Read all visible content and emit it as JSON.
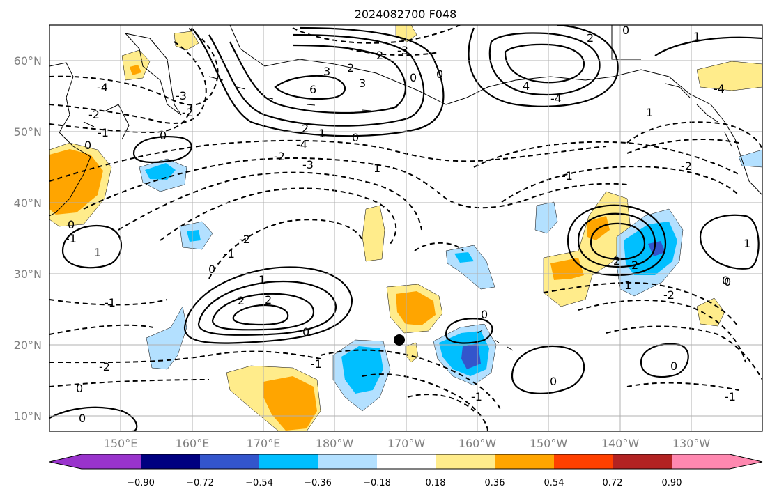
{
  "title": "2024082700 F048",
  "map": {
    "lat_labels": [
      "60°N",
      "50°N",
      "40°N",
      "30°N",
      "20°N",
      "10°N"
    ],
    "lon_labels": [
      "150°E",
      "160°E",
      "170°E",
      "180°W",
      "170°W",
      "160°W",
      "150°W",
      "140°W",
      "130°W"
    ],
    "grid": true,
    "marker": "black-dot"
  },
  "colorbar": {
    "ticks": [
      "−0.90",
      "−0.72",
      "−0.54",
      "−0.36",
      "−0.18",
      "0.18",
      "0.36",
      "0.54",
      "0.72",
      "0.90"
    ],
    "colors": [
      "#9933cc",
      "#000080",
      "#3355cc",
      "#00bfff",
      "#b3e0ff",
      "#ffffff",
      "#ffec8b",
      "#ffa500",
      "#ff4000",
      "#b22222",
      "#ff88b0"
    ]
  },
  "contour_labels": [
    {
      "text": "-4"
    },
    {
      "text": "-2"
    },
    {
      "text": "-1"
    },
    {
      "text": "0"
    },
    {
      "text": "0"
    },
    {
      "text": "-2"
    },
    {
      "text": "-3"
    },
    {
      "text": "-3"
    },
    {
      "text": "2"
    },
    {
      "text": "3"
    },
    {
      "text": "6"
    },
    {
      "text": "2"
    },
    {
      "text": "0"
    },
    {
      "text": "0"
    },
    {
      "text": "2"
    },
    {
      "text": "3"
    },
    {
      "text": "1"
    },
    {
      "text": "4"
    },
    {
      "text": "2"
    },
    {
      "text": "0"
    },
    {
      "text": "-4"
    },
    {
      "text": "0"
    },
    {
      "text": "1"
    },
    {
      "text": "-4"
    },
    {
      "text": "-4"
    },
    {
      "text": "-2"
    },
    {
      "text": "-3"
    },
    {
      "text": "-2"
    },
    {
      "text": "-1"
    },
    {
      "text": "0"
    },
    {
      "text": "1"
    },
    {
      "text": "2"
    },
    {
      "text": "0"
    },
    {
      "text": "-1"
    },
    {
      "text": "2"
    },
    {
      "text": "-1"
    },
    {
      "text": "1"
    },
    {
      "text": "2"
    },
    {
      "text": "0"
    },
    {
      "text": "-2"
    },
    {
      "text": "-1"
    },
    {
      "text": "0"
    },
    {
      "text": "-1"
    },
    {
      "text": "0"
    },
    {
      "text": "-1"
    },
    {
      "text": "0"
    },
    {
      "text": "0"
    },
    {
      "text": "0"
    },
    {
      "text": "1"
    },
    {
      "text": "-2"
    },
    {
      "text": "2"
    },
    {
      "text": "1"
    },
    {
      "text": "0"
    },
    {
      "text": "1"
    },
    {
      "text": "1"
    },
    {
      "text": "-1"
    },
    {
      "text": "-2"
    },
    {
      "text": "0"
    }
  ]
}
